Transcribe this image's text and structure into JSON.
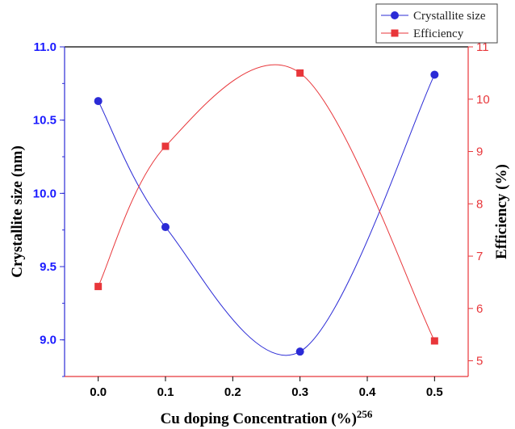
{
  "chart_data": {
    "type": "line",
    "xlabel": "Cu doping Concentration (%)",
    "xlabel_superscript": "256",
    "x": [
      0.0,
      0.1,
      0.3,
      0.5
    ],
    "xlim": [
      -0.05,
      0.55
    ],
    "xticks": [
      "0.0",
      "0.1",
      "0.2",
      "0.3",
      "0.4",
      "0.5"
    ],
    "xtick_values": [
      0.0,
      0.1,
      0.2,
      0.3,
      0.4,
      0.5
    ],
    "legend_position": "top-right",
    "grid": false,
    "series": [
      {
        "name": "Crystallite size",
        "axis": "left",
        "color": "#2b2bd6",
        "marker": "circle",
        "values": [
          10.63,
          9.77,
          8.92,
          10.81
        ]
      },
      {
        "name": "Efficiency",
        "axis": "right",
        "color": "#e8363a",
        "marker": "square",
        "values": [
          6.42,
          9.1,
          10.5,
          5.38
        ]
      }
    ],
    "y_left": {
      "label": "Crystallite size (nm)",
      "lim": [
        8.75,
        11.0
      ],
      "ticks": [
        "9.0",
        "9.5",
        "10.0",
        "10.5",
        "11.0"
      ],
      "tick_values": [
        9.0,
        9.5,
        10.0,
        10.5,
        11.0
      ],
      "color": "#1a1aff"
    },
    "y_right": {
      "label": "Efficiency (%)",
      "lim": [
        4.7,
        11.0
      ],
      "ticks": [
        "5",
        "6",
        "7",
        "8",
        "9",
        "10",
        "11"
      ],
      "tick_values": [
        5,
        6,
        7,
        8,
        9,
        10,
        11
      ],
      "color": "#e8363a"
    }
  }
}
